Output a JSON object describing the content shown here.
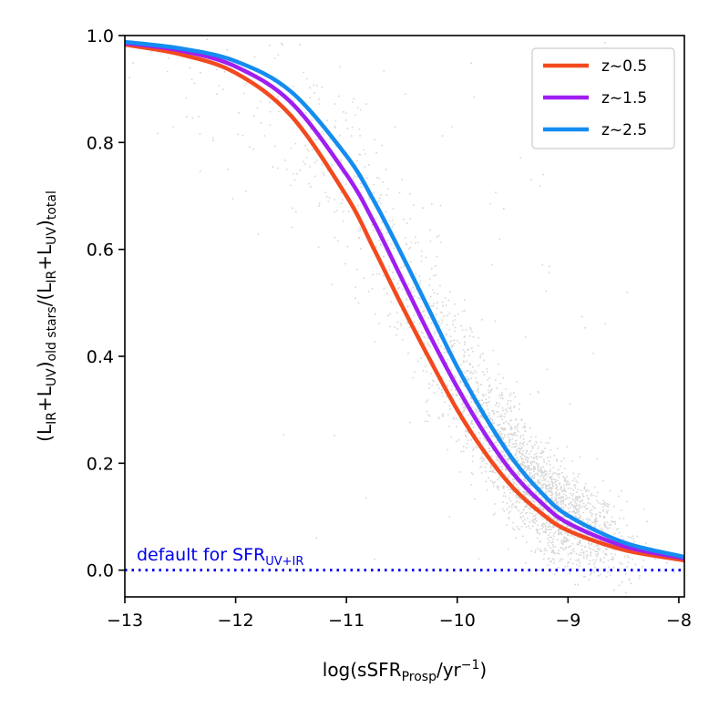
{
  "chart_data": {
    "type": "line",
    "title": "",
    "xlabel": {
      "main": "log(sSFR",
      "sub": "Prosp",
      "mid": "/yr",
      "sup": "−1",
      "end": ")"
    },
    "ylabel": {
      "p1": "(L",
      "s1": "IR",
      "p2": "+L",
      "s2": "UV",
      "p3": ")",
      "s3": "old stars",
      "p4": "/(L",
      "s4": "IR",
      "p5": "+L",
      "s5": "UV",
      "p6": ")",
      "s6": "total"
    },
    "xlim": [
      -13,
      -7.95
    ],
    "ylim": [
      -0.05,
      1.0
    ],
    "xticks": [
      -13,
      -12,
      -11,
      -10,
      -9,
      -8
    ],
    "xtick_labels": [
      "−13",
      "−12",
      "−11",
      "−10",
      "−9",
      "−8"
    ],
    "yticks": [
      0.0,
      0.2,
      0.4,
      0.6,
      0.8,
      1.0
    ],
    "ytick_labels": [
      "0.0",
      "0.2",
      "0.4",
      "0.6",
      "0.8",
      "1.0"
    ],
    "grid": false,
    "legend_position": "top-right",
    "series": [
      {
        "name": "z~0.5",
        "color": "#f24a1e",
        "x": [
          -13.0,
          -12.5,
          -12.0,
          -11.5,
          -11.0,
          -10.75,
          -10.5,
          -10.25,
          -10.0,
          -9.75,
          -9.5,
          -9.25,
          -9.0,
          -8.5,
          -8.0,
          -7.95
        ],
        "y": [
          0.983,
          0.965,
          0.93,
          0.85,
          0.7,
          0.6,
          0.495,
          0.395,
          0.3,
          0.22,
          0.155,
          0.108,
          0.074,
          0.038,
          0.02,
          0.018
        ]
      },
      {
        "name": "z~1.5",
        "color": "#a01ef0",
        "x": [
          -13.0,
          -12.5,
          -12.0,
          -11.5,
          -11.0,
          -10.75,
          -10.5,
          -10.25,
          -10.0,
          -9.75,
          -9.5,
          -9.25,
          -9.0,
          -8.5,
          -8.0,
          -7.95
        ],
        "y": [
          0.986,
          0.972,
          0.942,
          0.875,
          0.74,
          0.65,
          0.545,
          0.44,
          0.342,
          0.255,
          0.182,
          0.128,
          0.088,
          0.045,
          0.024,
          0.022
        ]
      },
      {
        "name": "z~2.5",
        "color": "#148cf0",
        "x": [
          -13.0,
          -12.5,
          -12.0,
          -11.5,
          -11.0,
          -10.75,
          -10.5,
          -10.25,
          -10.0,
          -9.75,
          -9.5,
          -9.25,
          -9.0,
          -8.5,
          -8.0,
          -7.95
        ],
        "y": [
          0.988,
          0.976,
          0.952,
          0.895,
          0.775,
          0.69,
          0.59,
          0.485,
          0.38,
          0.288,
          0.208,
          0.147,
          0.102,
          0.052,
          0.027,
          0.025
        ]
      }
    ],
    "reference_line": {
      "y": 0.0,
      "color": "#0000ee",
      "style": "dotted",
      "label_main": "default for SFR",
      "label_sub": "UV+IR"
    },
    "scatter_background": {
      "description_color": "#000000",
      "count": 9000
    }
  }
}
